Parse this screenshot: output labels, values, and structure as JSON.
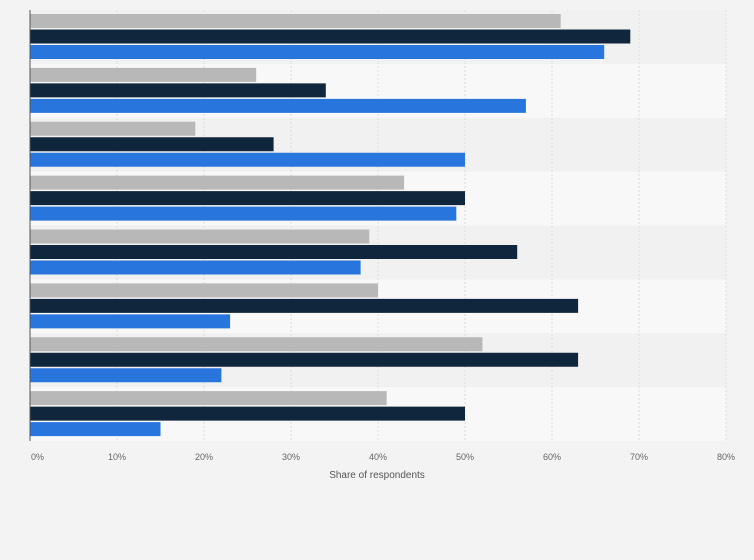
{
  "chart_data": {
    "type": "bar",
    "orientation": "horizontal",
    "title": "",
    "xlabel": "Share of respondents",
    "ylabel": "",
    "xlim": [
      0,
      80
    ],
    "xticks": [
      "0%",
      "10%",
      "20%",
      "30%",
      "40%",
      "50%",
      "60%",
      "70%",
      "80%"
    ],
    "grid": true,
    "categories_count": 8,
    "series": [
      {
        "color": "#b8b8b8",
        "values": [
          61,
          26,
          19,
          43,
          39,
          40,
          52,
          41
        ]
      },
      {
        "color": "#10263d",
        "values": [
          69,
          34,
          28,
          50,
          56,
          63,
          63,
          50
        ]
      },
      {
        "color": "#2876dd",
        "values": [
          66,
          57,
          50,
          49,
          38,
          23,
          22,
          15
        ]
      }
    ]
  }
}
